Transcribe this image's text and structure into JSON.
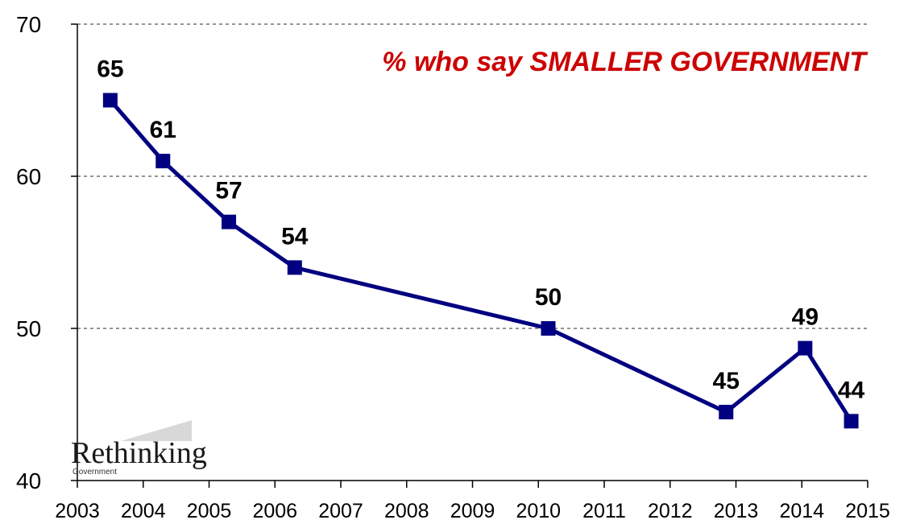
{
  "chart_data": {
    "type": "line",
    "title": "% who say SMALLER GOVERNMENT",
    "xlabel": "",
    "ylabel": "",
    "ylim": [
      40,
      70
    ],
    "xlim": [
      2003,
      2015
    ],
    "y_ticks": [
      "70",
      "60",
      "50",
      "40"
    ],
    "x_ticks": [
      "2003",
      "2004",
      "2005",
      "2006",
      "2007",
      "2008",
      "2009",
      "2010",
      "2011",
      "2012",
      "2013",
      "2014",
      "2015"
    ],
    "grid": "dashed horizontal at 50, 60, 70",
    "series": [
      {
        "x": [
          2003.5,
          2004.3,
          2005.3,
          2006.3,
          2010.15,
          2012.85,
          2014.05,
          2014.75
        ],
        "values": [
          65,
          61,
          57,
          54,
          50,
          44.5,
          48.7,
          43.9
        ],
        "labels": [
          "65",
          "61",
          "57",
          "54",
          "50",
          "45",
          "49",
          "44"
        ]
      }
    ],
    "colors": {
      "line": "#000080",
      "marker": "#000080",
      "title": "#cc0000",
      "grid": "#555555"
    }
  },
  "logo": {
    "name": "Rethinking",
    "sub": "Government"
  }
}
